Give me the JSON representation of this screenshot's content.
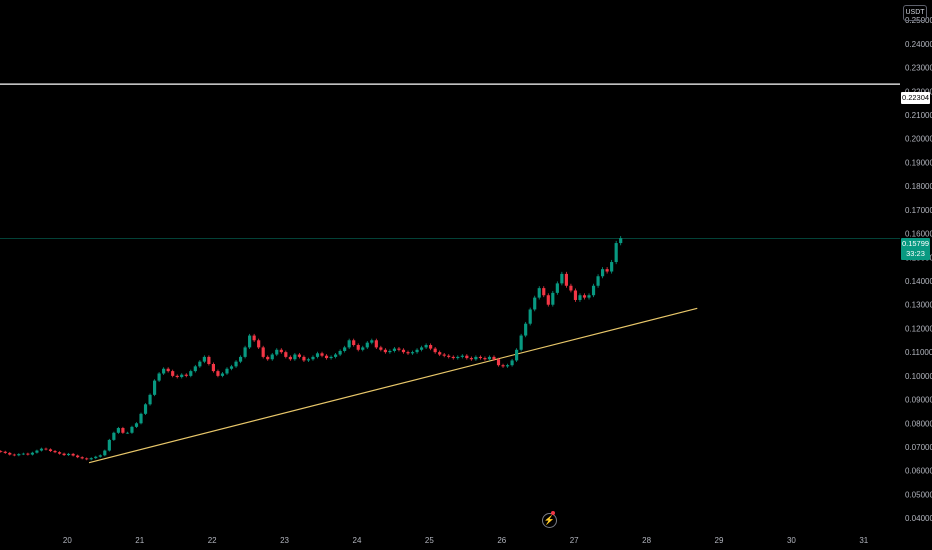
{
  "toolbar": {
    "currency": "USDT"
  },
  "colors": {
    "up": "#089981",
    "down": "#f23645",
    "trendline": "#e8c76a",
    "level": "#ffffff",
    "price_line": "#089981"
  },
  "icons": {
    "events": "lightning-icon"
  },
  "chart_data": {
    "type": "candlestick",
    "title": "",
    "xlabel": "",
    "ylabel": "",
    "grid": false,
    "ylim": [
      0.035,
      0.2585
    ],
    "xlim_day": [
      19.07,
      31.5
    ],
    "y_ticks": [
      "0.04000",
      "0.05000",
      "0.06000",
      "0.07000",
      "0.08000",
      "0.09000",
      "0.10000",
      "0.11000",
      "0.12000",
      "0.13000",
      "0.14000",
      "0.15000",
      "0.16000",
      "0.17000",
      "0.18000",
      "0.19000",
      "0.20000",
      "0.21000",
      "0.22000",
      "0.23000",
      "0.24000",
      "0.25000"
    ],
    "y_tick_values": [
      0.04,
      0.05,
      0.06,
      0.07,
      0.08,
      0.09,
      0.1,
      0.11,
      0.12,
      0.13,
      0.14,
      0.15,
      0.16,
      0.17,
      0.18,
      0.19,
      0.2,
      0.21,
      0.22,
      0.23,
      0.24,
      0.25
    ],
    "x_ticks": [
      "20",
      "21",
      "22",
      "23",
      "24",
      "25",
      "26",
      "27",
      "28",
      "29",
      "30",
      "31"
    ],
    "x_tick_values": [
      20,
      21,
      22,
      23,
      24,
      25,
      26,
      27,
      28,
      29,
      30,
      31
    ],
    "horizontal_level": {
      "value": 0.22304,
      "label": "0.22304"
    },
    "current_price": {
      "value": 0.15799,
      "label": "0.15799",
      "countdown": "33:23"
    },
    "trendline": {
      "start": {
        "day": 20.3,
        "value": 0.0634
      },
      "end": {
        "day": 28.7,
        "value": 0.1285
      }
    },
    "candle_interval_days": 0.0625,
    "candle_start_day": 19.08,
    "candles_close": [
      0.068,
      0.0675,
      0.0668,
      0.0665,
      0.067,
      0.0672,
      0.0668,
      0.0676,
      0.0685,
      0.0693,
      0.069,
      0.0683,
      0.0678,
      0.0672,
      0.0666,
      0.0671,
      0.0664,
      0.0657,
      0.0652,
      0.0648,
      0.0653,
      0.0659,
      0.0665,
      0.0685,
      0.073,
      0.076,
      0.078,
      0.076,
      0.076,
      0.0785,
      0.08,
      0.084,
      0.088,
      0.092,
      0.098,
      0.101,
      0.103,
      0.102,
      0.1,
      0.0995,
      0.1005,
      0.1,
      0.102,
      0.104,
      0.106,
      0.108,
      0.105,
      0.102,
      0.1,
      0.101,
      0.103,
      0.104,
      0.106,
      0.108,
      0.112,
      0.117,
      0.115,
      0.112,
      0.108,
      0.107,
      0.109,
      0.111,
      0.11,
      0.108,
      0.107,
      0.109,
      0.108,
      0.1065,
      0.107,
      0.108,
      0.1095,
      0.1085,
      0.1075,
      0.108,
      0.109,
      0.1105,
      0.112,
      0.115,
      0.113,
      0.111,
      0.112,
      0.114,
      0.115,
      0.112,
      0.111,
      0.11,
      0.1105,
      0.1115,
      0.111,
      0.11,
      0.1095,
      0.11,
      0.111,
      0.112,
      0.113,
      0.1115,
      0.11,
      0.109,
      0.1085,
      0.108,
      0.1075,
      0.108,
      0.1085,
      0.1075,
      0.107,
      0.108,
      0.1075,
      0.107,
      0.108,
      0.107,
      0.1045,
      0.104,
      0.1045,
      0.1065,
      0.111,
      0.117,
      0.122,
      0.128,
      0.133,
      0.137,
      0.134,
      0.13,
      0.135,
      0.139,
      0.143,
      0.138,
      0.136,
      0.132,
      0.134,
      0.133,
      0.134,
      0.138,
      0.142,
      0.145,
      0.144,
      0.148,
      0.156,
      0.158
    ],
    "y_axis_currency": "USDT"
  }
}
